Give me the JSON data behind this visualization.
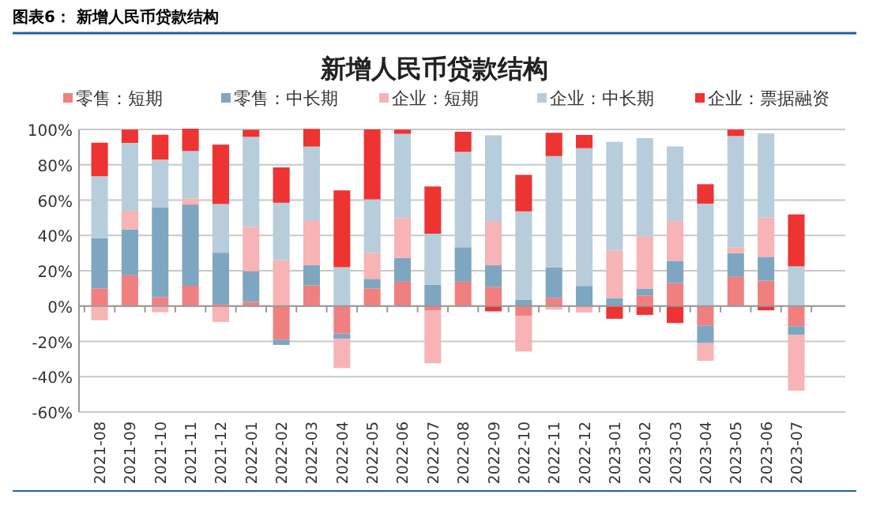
{
  "chart_data": {
    "type": "bar",
    "stacked": true,
    "title": "新增人民币贷款结构",
    "annotations": [
      "图表6：  新增人民币贷款结构"
    ],
    "categories": [
      "2021-08",
      "2021-09",
      "2021-10",
      "2021-11",
      "2021-12",
      "2022-01",
      "2022-02",
      "2022-03",
      "2022-04",
      "2022-05",
      "2022-06",
      "2022-07",
      "2022-08",
      "2022-09",
      "2022-10",
      "2022-11",
      "2022-12",
      "2023-01",
      "2023-02",
      "2023-03",
      "2023-04",
      "2023-05",
      "2023-06",
      "2023-07"
    ],
    "series": [
      {
        "name": "零售：短期",
        "color": "#f08080",
        "values": [
          10,
          17.4,
          5,
          11.5,
          1.2,
          2.4,
          -19,
          11.7,
          -15.6,
          10,
          13.8,
          -2.4,
          13.8,
          10.8,
          -5.7,
          4.5,
          0,
          0,
          6,
          13,
          -11,
          16.5,
          14.4,
          -11.4
        ]
      },
      {
        "name": "零售：中长期",
        "color": "#7fa6c0",
        "values": [
          28.5,
          26,
          51,
          46,
          29,
          17.4,
          -3,
          11.4,
          -3,
          5.4,
          13.5,
          12,
          19.5,
          12.3,
          3.6,
          17.4,
          11.4,
          4.5,
          3.9,
          12.6,
          -10,
          13.5,
          13.5,
          -5
        ]
      },
      {
        "name": "企业：短期",
        "color": "#f7b3b5",
        "values": [
          -8,
          10.5,
          -3.5,
          3.3,
          -9,
          25,
          26,
          25.5,
          -16.5,
          14.7,
          22.5,
          -30,
          0,
          24.6,
          -20,
          -2,
          -3.6,
          27,
          29.4,
          22.5,
          -10,
          3.3,
          22.2,
          -31.5
        ]
      },
      {
        "name": "企业：中长期",
        "color": "#b7cddb",
        "values": [
          35,
          38.5,
          27,
          27,
          27.6,
          51,
          32.5,
          41.7,
          22,
          30.3,
          47.7,
          29,
          54,
          49,
          50,
          63,
          78,
          61.5,
          55.8,
          42.3,
          58,
          63,
          47.7,
          22.5
        ]
      },
      {
        "name": "企业：票据融资",
        "color": "#ee3333",
        "values": [
          19,
          7.5,
          14,
          12.6,
          33.6,
          4,
          20,
          10,
          43.5,
          39.6,
          2.4,
          26.7,
          11.4,
          -3,
          20.7,
          13.2,
          7.5,
          -7.2,
          -5,
          -9.6,
          11,
          3.6,
          -2.4,
          29.4
        ]
      }
    ],
    "ylim": [
      -60,
      100
    ],
    "yticks": [
      {
        "value": -60,
        "label": "-60%"
      },
      {
        "value": -40,
        "label": "-40%"
      },
      {
        "value": -20,
        "label": "-20%"
      },
      {
        "value": 0,
        "label": "0%"
      },
      {
        "value": 20,
        "label": "20%"
      },
      {
        "value": 40,
        "label": "40%"
      },
      {
        "value": 60,
        "label": "60%"
      },
      {
        "value": 80,
        "label": "80%"
      },
      {
        "value": 100,
        "label": "100%"
      }
    ],
    "grid": "y",
    "legend": "top"
  }
}
